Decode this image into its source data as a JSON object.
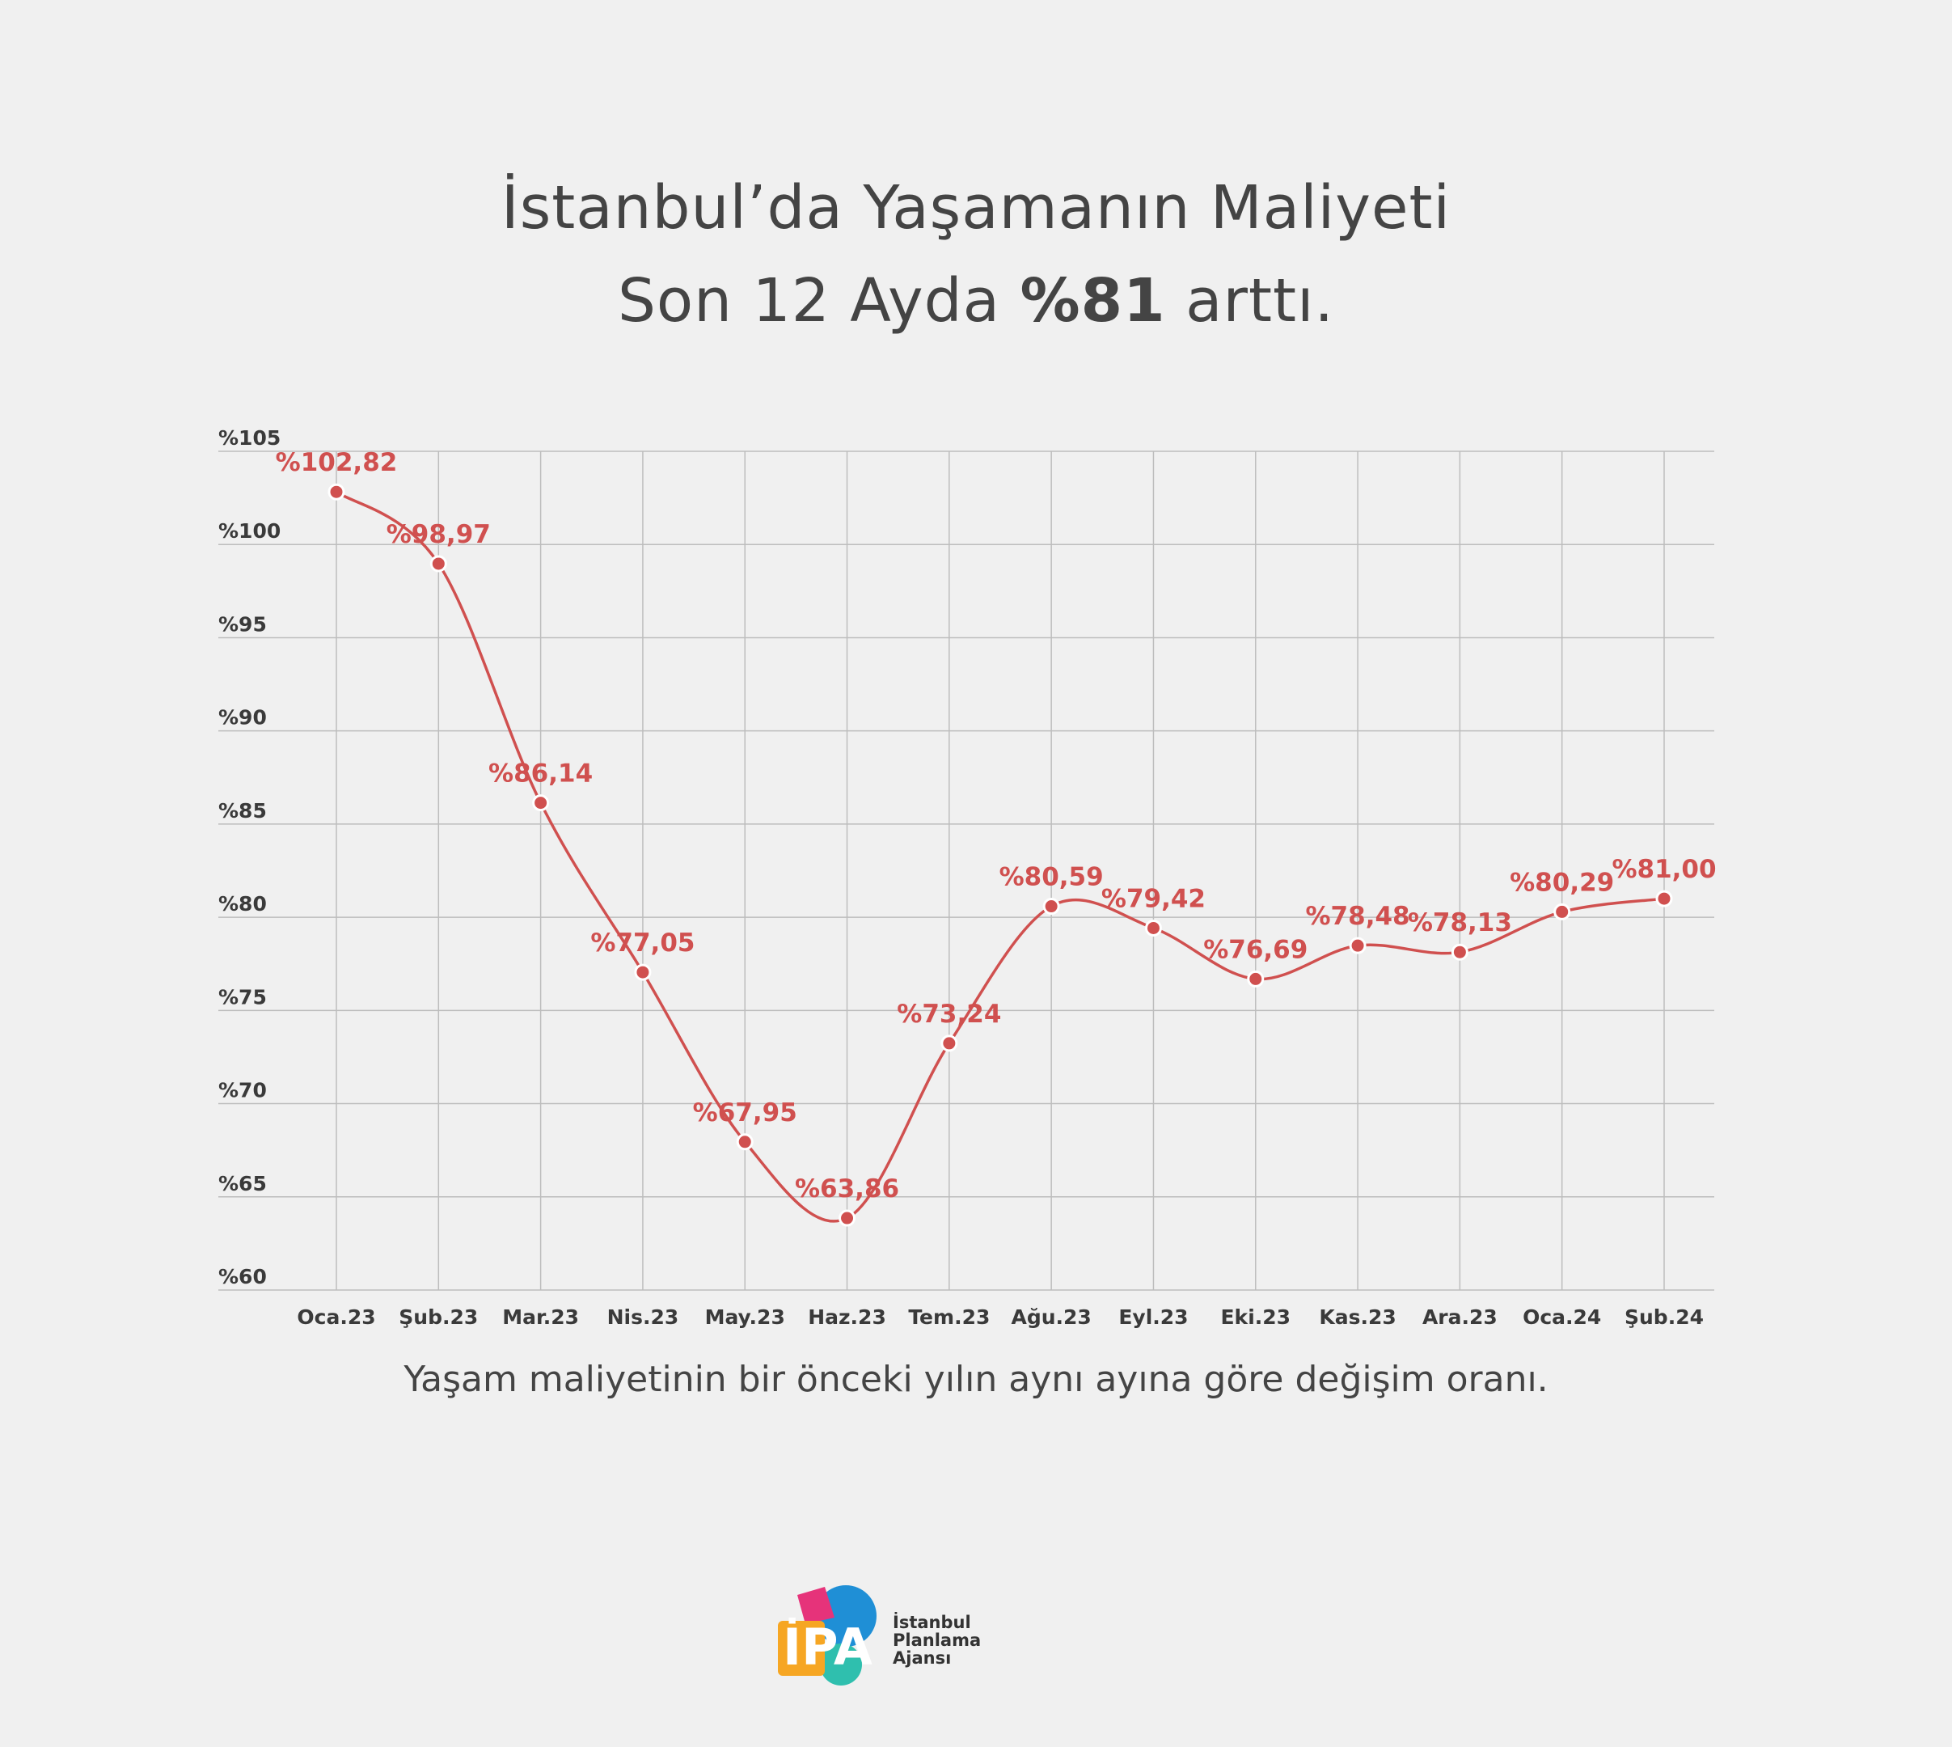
{
  "title": {
    "line1": "İstanbul’da Yaşamanın Maliyeti",
    "line2_prefix": "Son 12 Ayda ",
    "line2_bold": "%81",
    "line2_suffix": " arttı."
  },
  "caption": "Yaşam maliyetinin bir önceki yılın aynı ayına  göre değişim oranı.",
  "logo": {
    "mark": "İPA",
    "lines": [
      "İstanbul",
      "Planlama",
      "Ajansı"
    ]
  },
  "colors": {
    "line": "#d0504f",
    "grid": "#bdbdbd",
    "text": "#444444",
    "background": "#f0f0f0"
  },
  "chart_data": {
    "type": "line",
    "categories": [
      "Oca.23",
      "Şub.23",
      "Mar.23",
      "Nis.23",
      "May.23",
      "Haz.23",
      "Tem.23",
      "Ağu.23",
      "Eyl.23",
      "Eki.23",
      "Kas.23",
      "Ara.23",
      "Oca.24",
      "Şub.24"
    ],
    "values": [
      102.82,
      98.97,
      86.14,
      77.05,
      67.95,
      63.86,
      73.24,
      80.59,
      79.42,
      76.69,
      78.48,
      78.13,
      80.29,
      81.0
    ],
    "data_labels": [
      "%102,82",
      "%98,97",
      "%86,14",
      "%77,05",
      "%67,95",
      "%63,86",
      "%73,24",
      "%80,59",
      "%79,42",
      "%76,69",
      "%78,48",
      "%78,13",
      "%80,29",
      "%81,00"
    ],
    "y_ticks": [
      60,
      65,
      70,
      75,
      80,
      85,
      90,
      95,
      100,
      105
    ],
    "y_tick_labels": [
      "%60",
      "%65",
      "%70",
      "%75",
      "%80",
      "%85",
      "%90",
      "%95",
      "%100",
      "%105"
    ],
    "ylim": [
      60,
      105
    ],
    "grid": true,
    "smooth": true,
    "legend": "none"
  }
}
